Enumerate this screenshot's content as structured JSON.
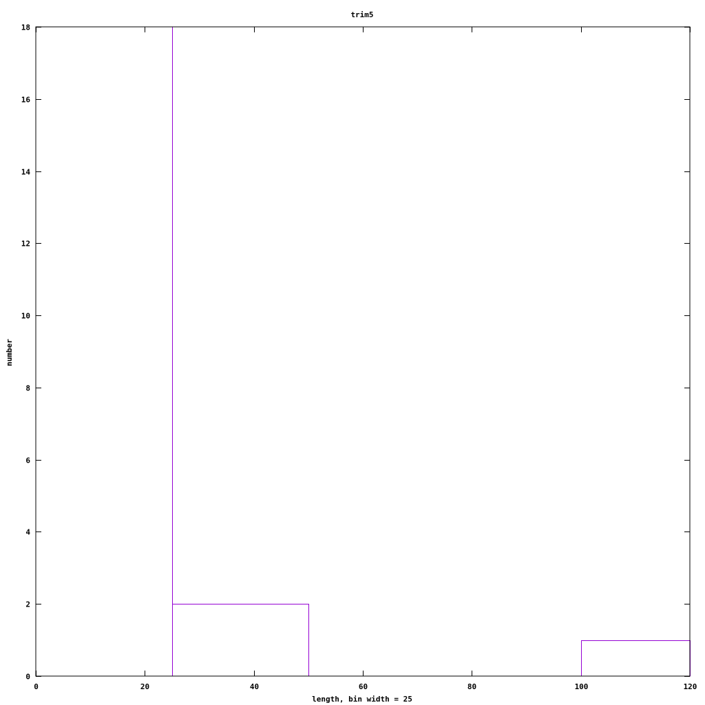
{
  "chart_data": {
    "type": "bar",
    "title": "trim5",
    "xlabel": "length, bin width = 25",
    "ylabel": "number",
    "xlim": [
      0,
      120
    ],
    "ylim": [
      0,
      18
    ],
    "x_ticks": [
      "0",
      "20",
      "40",
      "60",
      "80",
      "100",
      "120"
    ],
    "y_ticks": [
      "0",
      "2",
      "4",
      "6",
      "8",
      "10",
      "12",
      "14",
      "16",
      "18"
    ],
    "bin_width": 25,
    "bins": [
      {
        "start": 25,
        "end": 50,
        "value": 2
      },
      {
        "start": 100,
        "end": 125,
        "value": 1
      }
    ],
    "grid": false,
    "series_color": "#9400d3",
    "axis_color": "#000000"
  }
}
